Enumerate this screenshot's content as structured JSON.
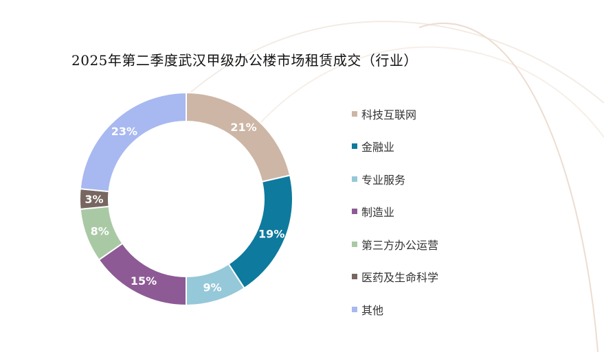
{
  "chart_data": {
    "type": "pie",
    "style": "donut",
    "title": "2025年第二季度武汉甲级办公楼市场租赁成交（行业）",
    "categories": [
      "科技互联网",
      "金融业",
      "专业服务",
      "制造业",
      "第三方办公运营",
      "医药及生命科学",
      "其他"
    ],
    "values": [
      21,
      19,
      9,
      15,
      8,
      3,
      23
    ],
    "labels": [
      "21%",
      "19%",
      "9%",
      "15%",
      "8%",
      "3%",
      "23%"
    ],
    "unit": "%",
    "colors": [
      "#CDB6A5",
      "#0E7A9E",
      "#95C8D8",
      "#8D5A95",
      "#A9C9A4",
      "#776760",
      "#A8B8F0"
    ],
    "legend_position": "right"
  }
}
